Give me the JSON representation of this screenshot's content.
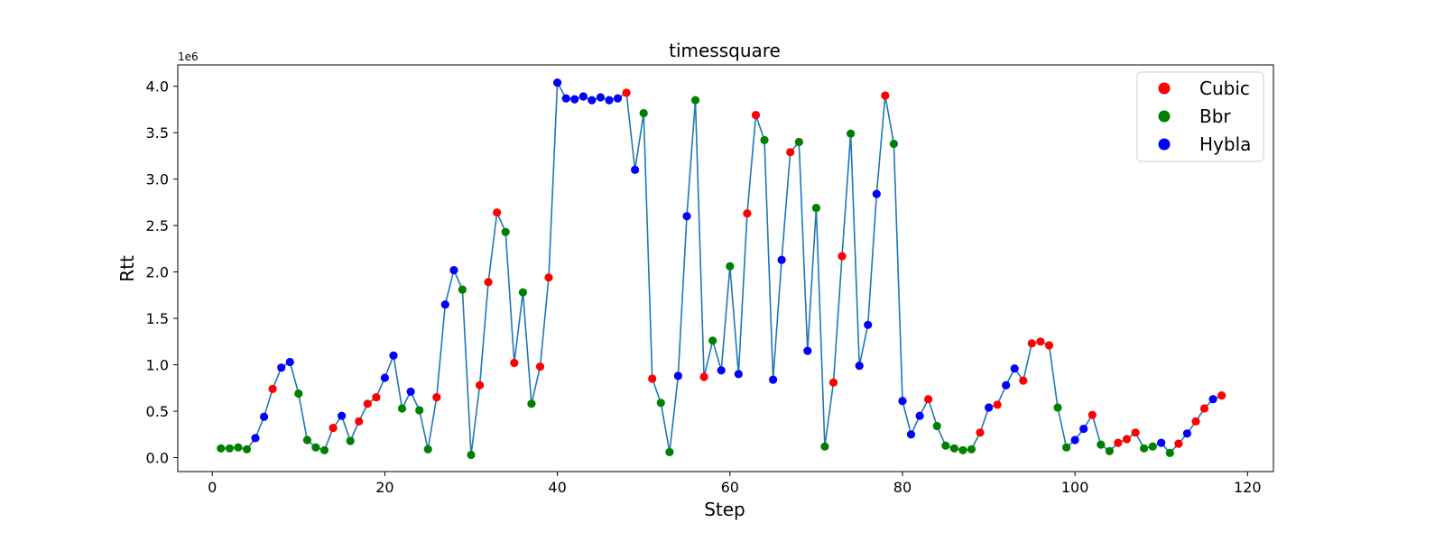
{
  "chart_data": {
    "type": "scatter",
    "title": "timessquare",
    "xlabel": "Step",
    "ylabel": "Rtt",
    "y_offset_label": "1e6",
    "xlim": [
      -4,
      123
    ],
    "ylim": [
      -150000,
      4230000
    ],
    "x_ticks": [
      0,
      20,
      40,
      60,
      80,
      100,
      120
    ],
    "x_tick_labels": [
      "0",
      "20",
      "40",
      "60",
      "80",
      "100",
      "120"
    ],
    "y_ticks": [
      0,
      500000,
      1000000,
      1500000,
      2000000,
      2500000,
      3000000,
      3500000,
      4000000
    ],
    "y_tick_labels": [
      "0.0",
      "0.5",
      "1.0",
      "1.5",
      "2.0",
      "2.5",
      "3.0",
      "3.5",
      "4.0"
    ],
    "grid": false,
    "legend_position": "top-right",
    "line_color": "#1f77b4",
    "legend": [
      {
        "name": "Cubic",
        "color": "#ff0000"
      },
      {
        "name": "Bbr",
        "color": "#008000"
      },
      {
        "name": "Hybla",
        "color": "#0000ff"
      }
    ],
    "colors": {
      "Cubic": "#ff0000",
      "Bbr": "#008000",
      "Hybla": "#0000ff"
    },
    "x": [
      1,
      2,
      3,
      4,
      5,
      6,
      7,
      8,
      9,
      10,
      11,
      12,
      13,
      14,
      15,
      16,
      17,
      18,
      19,
      20,
      21,
      22,
      23,
      24,
      25,
      26,
      27,
      28,
      29,
      30,
      31,
      32,
      33,
      34,
      35,
      36,
      37,
      38,
      39,
      40,
      41,
      42,
      43,
      44,
      45,
      46,
      47,
      48,
      49,
      50,
      51,
      52,
      53,
      54,
      55,
      56,
      57,
      58,
      59,
      60,
      61,
      62,
      63,
      64,
      65,
      66,
      67,
      68,
      69,
      70,
      71,
      72,
      73,
      74,
      75,
      76,
      77,
      78,
      79,
      80,
      81,
      82,
      83,
      84,
      85,
      86,
      87,
      88,
      89,
      90,
      91,
      92,
      93,
      94,
      95,
      96,
      97,
      98,
      99,
      100,
      101,
      102,
      103,
      104,
      105,
      106,
      107,
      108,
      109,
      110,
      111,
      112,
      113,
      114,
      115,
      116,
      117
    ],
    "y": [
      100000,
      100000,
      110000,
      90000,
      210000,
      440000,
      740000,
      970000,
      1030000,
      690000,
      190000,
      110000,
      80000,
      320000,
      450000,
      180000,
      390000,
      580000,
      650000,
      860000,
      1100000,
      530000,
      710000,
      510000,
      90000,
      650000,
      1650000,
      2020000,
      1810000,
      30000,
      780000,
      1890000,
      2640000,
      2430000,
      1020000,
      1780000,
      580000,
      980000,
      1940000,
      4040000,
      3870000,
      3860000,
      3890000,
      3850000,
      3880000,
      3850000,
      3870000,
      3930000,
      3100000,
      3710000,
      850000,
      590000,
      60000,
      880000,
      2600000,
      3850000,
      870000,
      1260000,
      940000,
      2060000,
      900000,
      2630000,
      3690000,
      3420000,
      840000,
      2130000,
      3290000,
      3400000,
      1150000,
      2690000,
      120000,
      810000,
      2170000,
      3490000,
      990000,
      1430000,
      2840000,
      3900000,
      3380000,
      610000,
      250000,
      450000,
      630000,
      340000,
      130000,
      100000,
      80000,
      90000,
      270000,
      540000,
      570000,
      780000,
      960000,
      830000,
      1230000,
      1250000,
      1210000,
      540000,
      110000,
      190000,
      310000,
      460000,
      140000,
      70000,
      160000,
      200000,
      270000,
      100000,
      120000,
      160000,
      50000,
      150000,
      260000,
      390000,
      530000,
      630000,
      670000
    ],
    "series_labels": [
      "Bbr",
      "Bbr",
      "Bbr",
      "Bbr",
      "Hybla",
      "Hybla",
      "Cubic",
      "Hybla",
      "Hybla",
      "Bbr",
      "Bbr",
      "Bbr",
      "Bbr",
      "Cubic",
      "Hybla",
      "Bbr",
      "Cubic",
      "Cubic",
      "Cubic",
      "Hybla",
      "Hybla",
      "Bbr",
      "Hybla",
      "Bbr",
      "Bbr",
      "Cubic",
      "Hybla",
      "Hybla",
      "Bbr",
      "Bbr",
      "Cubic",
      "Cubic",
      "Cubic",
      "Bbr",
      "Cubic",
      "Bbr",
      "Bbr",
      "Cubic",
      "Cubic",
      "Hybla",
      "Hybla",
      "Hybla",
      "Hybla",
      "Hybla",
      "Hybla",
      "Hybla",
      "Hybla",
      "Cubic",
      "Hybla",
      "Bbr",
      "Cubic",
      "Bbr",
      "Bbr",
      "Hybla",
      "Hybla",
      "Bbr",
      "Cubic",
      "Bbr",
      "Hybla",
      "Bbr",
      "Hybla",
      "Cubic",
      "Cubic",
      "Bbr",
      "Hybla",
      "Hybla",
      "Cubic",
      "Bbr",
      "Hybla",
      "Bbr",
      "Bbr",
      "Cubic",
      "Cubic",
      "Bbr",
      "Hybla",
      "Hybla",
      "Hybla",
      "Cubic",
      "Bbr",
      "Hybla",
      "Hybla",
      "Hybla",
      "Cubic",
      "Bbr",
      "Bbr",
      "Bbr",
      "Bbr",
      "Bbr",
      "Cubic",
      "Hybla",
      "Cubic",
      "Hybla",
      "Hybla",
      "Cubic",
      "Cubic",
      "Cubic",
      "Cubic",
      "Bbr",
      "Bbr",
      "Hybla",
      "Hybla",
      "Cubic",
      "Bbr",
      "Bbr",
      "Cubic",
      "Cubic",
      "Cubic",
      "Bbr",
      "Bbr",
      "Hybla",
      "Bbr",
      "Cubic",
      "Hybla",
      "Cubic",
      "Cubic",
      "Hybla",
      "Cubic"
    ]
  }
}
